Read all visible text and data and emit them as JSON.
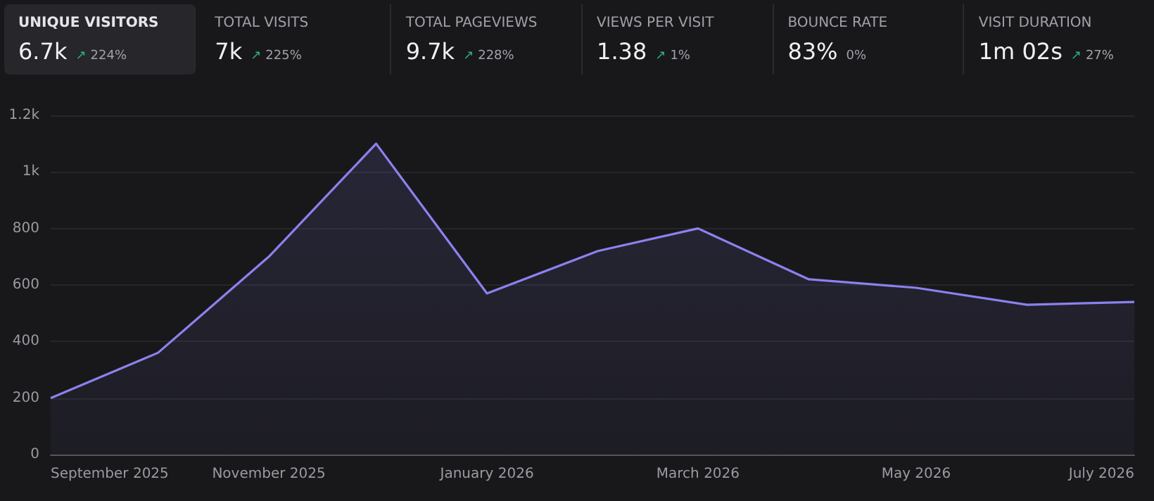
{
  "chart_data": [
    {
      "type": "other",
      "categories": [
        "UNIQUE VISITORS",
        "TOTAL VISITS",
        "TOTAL PAGEVIEWS",
        "VIEWS PER VISIT",
        "BOUNCE RATE",
        "VISIT DURATION"
      ],
      "value_labels": [
        "6.7k",
        "7k",
        "9.7k",
        "1.38",
        "83%",
        "1m 02s"
      ],
      "annotations": [
        "↗ 224%",
        "↗ 225%",
        "↗ 228%",
        "↗ 1%",
        "0%",
        "↗ 27%"
      ]
    },
    {
      "type": "area",
      "x": [
        "2025-09",
        "2025-10",
        "2025-11",
        "2025-12",
        "2026-01",
        "2026-02",
        "2026-03",
        "2026-04",
        "2026-05",
        "2026-06",
        "2026-07"
      ],
      "xlim": [
        "2025-09",
        "2026-07"
      ],
      "xticks": [
        {
          "value": "2025-09",
          "label": "September 2025"
        },
        {
          "value": "2025-11",
          "label": "November 2025"
        },
        {
          "value": "2026-01",
          "label": "January 2026"
        },
        {
          "value": "2026-03",
          "label": "March 2026"
        },
        {
          "value": "2026-05",
          "label": "May 2026"
        },
        {
          "value": "2026-07",
          "label": "July 2026"
        }
      ],
      "series": [
        {
          "color": "#8b82ee",
          "values": [
            200,
            360,
            700,
            1100,
            570,
            720,
            800,
            620,
            590,
            530,
            540
          ]
        }
      ],
      "ylim": [
        0,
        1200
      ],
      "yticks": [
        0,
        200,
        400,
        600,
        800,
        {
          "value": 1000,
          "label": "1k"
        },
        {
          "value": 1200,
          "label": "1.2k"
        }
      ],
      "grid": "y",
      "marker": "none"
    }
  ]
}
